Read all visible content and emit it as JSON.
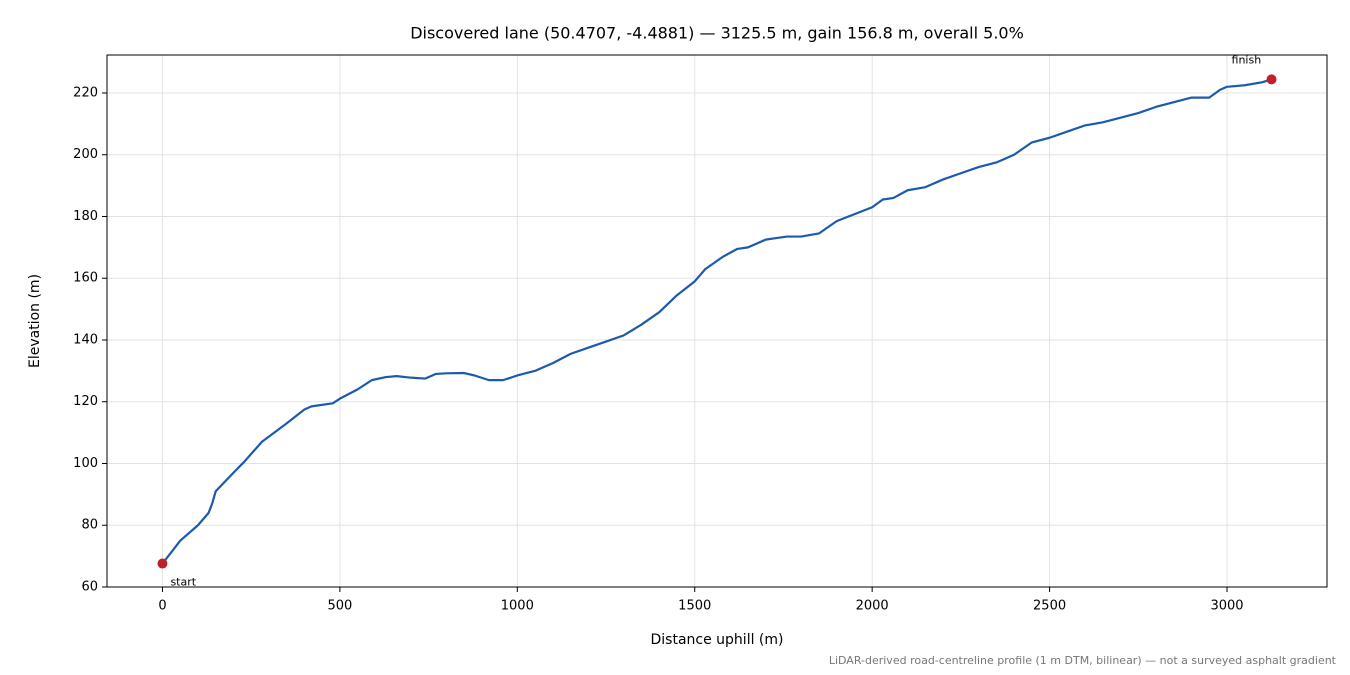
{
  "chart_data": {
    "type": "line",
    "title": "Discovered lane (50.4707, -4.4881) — 3125.5 m, gain 156.8 m, overall 5.0%",
    "x_label": "Distance uphill (m)",
    "y_label": "Elevation (m)",
    "footnote": "LiDAR-derived road-centreline profile (1 m DTM, bilinear) — not a surveyed asphalt gradient",
    "series": [
      {
        "color": "#1c5aad",
        "x": [
          0,
          30,
          50,
          100,
          130,
          140,
          150,
          200,
          230,
          280,
          350,
          400,
          420,
          480,
          500,
          550,
          590,
          630,
          660,
          700,
          740,
          770,
          800,
          850,
          880,
          920,
          960,
          1000,
          1050,
          1100,
          1150,
          1200,
          1250,
          1300,
          1350,
          1400,
          1450,
          1500,
          1530,
          1580,
          1620,
          1650,
          1700,
          1730,
          1760,
          1800,
          1850,
          1900,
          2000,
          2030,
          2060,
          2100,
          2150,
          2200,
          2250,
          2300,
          2350,
          2400,
          2450,
          2500,
          2550,
          2600,
          2650,
          2700,
          2750,
          2800,
          2850,
          2900,
          2950,
          2980,
          3000,
          3050,
          3100,
          3125.5
        ],
        "values": [
          67.6,
          72,
          75,
          80,
          84,
          87,
          91,
          97,
          100.5,
          107,
          113,
          117.5,
          118.5,
          119.5,
          121,
          124,
          127,
          128,
          128.3,
          127.8,
          127.5,
          129,
          129.2,
          129.3,
          128.5,
          127,
          127,
          128.5,
          130,
          132.5,
          135.5,
          137.5,
          139.5,
          141.5,
          145,
          149,
          154.5,
          159,
          163,
          167,
          169.5,
          170,
          172.5,
          173,
          173.5,
          173.5,
          174.5,
          178.5,
          183,
          185.5,
          186,
          188.5,
          189.5,
          192,
          194,
          196,
          197.5,
          200,
          204,
          205.5,
          207.5,
          209.5,
          210.5,
          212,
          213.5,
          215.5,
          217,
          218.5,
          218.5,
          221,
          222,
          222.5,
          223.5,
          224.4
        ]
      }
    ],
    "endpoints": {
      "color": "#c0202a",
      "x": [
        0,
        3125.5
      ],
      "values": [
        67.6,
        224.4
      ],
      "labels": [
        "start",
        "finish"
      ]
    },
    "xlim": [
      -156.3,
      3281.8
    ],
    "ylim": [
      60,
      232.3
    ],
    "xticks": [
      0,
      500,
      1000,
      1500,
      2000,
      2500,
      3000
    ],
    "yticks": [
      60,
      80,
      100,
      120,
      140,
      160,
      180,
      200,
      220
    ],
    "grid": true
  }
}
